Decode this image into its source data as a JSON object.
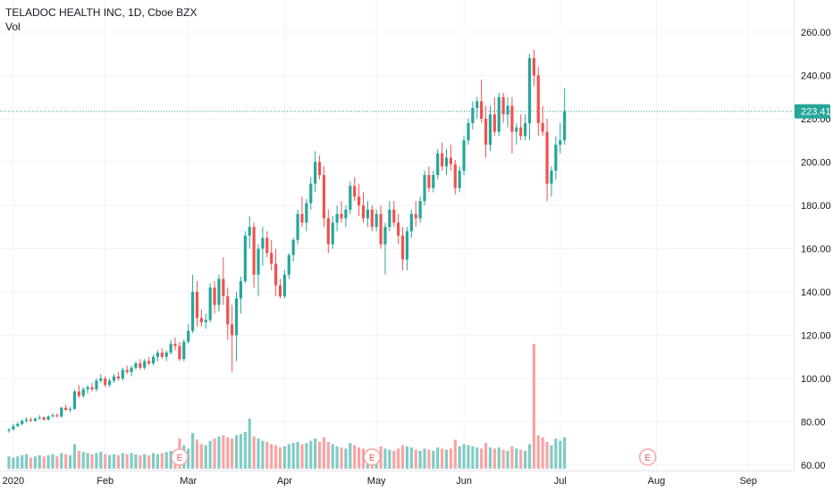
{
  "legend": {
    "title": "TELADOC HEALTH INC, 1D, Cboe BZX",
    "volume_label": "Vol"
  },
  "colors": {
    "up": "#26a69a",
    "down": "#ef5350",
    "vol_up": "#80cbc4",
    "vol_down": "#f7a5a3",
    "grid": "#f0f3fa",
    "last_line": "#26a69a"
  },
  "chart_data": {
    "type": "candlestick",
    "title": "",
    "y_ticks": [
      "260.00",
      "240.00",
      "220.00",
      "200.00",
      "180.00",
      "160.00",
      "140.00",
      "120.00",
      "100.00",
      "80.00",
      "60.00"
    ],
    "ylim": [
      57,
      267
    ],
    "x_ticks": [
      {
        "label": "2020",
        "day": 1
      },
      {
        "label": "Feb",
        "day": 22
      },
      {
        "label": "Mar",
        "day": 41
      },
      {
        "label": "Apr",
        "day": 63
      },
      {
        "label": "May",
        "day": 84
      },
      {
        "label": "Jun",
        "day": 104
      },
      {
        "label": "Jul",
        "day": 126
      },
      {
        "label": "Aug",
        "day": 148
      },
      {
        "label": "Sep",
        "day": 169
      }
    ],
    "last_price": "223.41",
    "earnings_markers": [
      {
        "label": "E",
        "day": 39
      },
      {
        "label": "E",
        "day": 83
      },
      {
        "label": "E",
        "day": 146
      }
    ],
    "ohlcv": [
      [
        76,
        77,
        75,
        76.5,
        11
      ],
      [
        76.5,
        79,
        76,
        78,
        10
      ],
      [
        78,
        80,
        77.5,
        79,
        11
      ],
      [
        79,
        81,
        78.5,
        80.5,
        12
      ],
      [
        80.5,
        82,
        79.5,
        81,
        13
      ],
      [
        81,
        82,
        80,
        80.5,
        10
      ],
      [
        80.5,
        82,
        80,
        81.5,
        11
      ],
      [
        81.5,
        83,
        81,
        82,
        12
      ],
      [
        82,
        82.5,
        80.5,
        81,
        11
      ],
      [
        81,
        83,
        80.5,
        82.5,
        12
      ],
      [
        82.5,
        84,
        82,
        83,
        13
      ],
      [
        83,
        84,
        82,
        82.5,
        11
      ],
      [
        82.5,
        87,
        82,
        86.5,
        14
      ],
      [
        86.5,
        88,
        85,
        85.5,
        13
      ],
      [
        85.5,
        87,
        84.5,
        86,
        12
      ],
      [
        86,
        95,
        85.5,
        94,
        22
      ],
      [
        94,
        97,
        91,
        92,
        16
      ],
      [
        92,
        96,
        91,
        95,
        15
      ],
      [
        95,
        97,
        93,
        96,
        14
      ],
      [
        96,
        98,
        94,
        95,
        13
      ],
      [
        95,
        100,
        94,
        99,
        14
      ],
      [
        99,
        102,
        98,
        100,
        15
      ],
      [
        100,
        101,
        96,
        97,
        13
      ],
      [
        97,
        100,
        96,
        99,
        12
      ],
      [
        99,
        102,
        98,
        101,
        13
      ],
      [
        101,
        103,
        99,
        100,
        12
      ],
      [
        100,
        105,
        99,
        104,
        14
      ],
      [
        104,
        106,
        102,
        103,
        13
      ],
      [
        103,
        106,
        101,
        105,
        14
      ],
      [
        105,
        108,
        104,
        107,
        13
      ],
      [
        107,
        109,
        104,
        105,
        12
      ],
      [
        105,
        109,
        104,
        108,
        13
      ],
      [
        108,
        110,
        106,
        107,
        12
      ],
      [
        107,
        111,
        106,
        110,
        14
      ],
      [
        110,
        113,
        108,
        112,
        13
      ],
      [
        112,
        114,
        109,
        110,
        14
      ],
      [
        110,
        113,
        108,
        112,
        15
      ],
      [
        112,
        118,
        111,
        116,
        16
      ],
      [
        116,
        119,
        113,
        115,
        15
      ],
      [
        115,
        117,
        108,
        109,
        27
      ],
      [
        109,
        118,
        108,
        117,
        21
      ],
      [
        117,
        125,
        116,
        122,
        18
      ],
      [
        122,
        148,
        121,
        140,
        32
      ],
      [
        140,
        145,
        124,
        128,
        26
      ],
      [
        128,
        132,
        124,
        126,
        22
      ],
      [
        126,
        130,
        123,
        127,
        21
      ],
      [
        127,
        144,
        126,
        142,
        25
      ],
      [
        142,
        145,
        130,
        134,
        27
      ],
      [
        134,
        148,
        131,
        146,
        29
      ],
      [
        146,
        156,
        134,
        138,
        30
      ],
      [
        138,
        142,
        118,
        125,
        28
      ],
      [
        125,
        134,
        103,
        120,
        27
      ],
      [
        120,
        140,
        108,
        137,
        30
      ],
      [
        137,
        147,
        130,
        145,
        31
      ],
      [
        145,
        168,
        144,
        166,
        33
      ],
      [
        166,
        175,
        160,
        170,
        45
      ],
      [
        170,
        172,
        142,
        148,
        29
      ],
      [
        148,
        162,
        138,
        160,
        27
      ],
      [
        160,
        170,
        152,
        165,
        25
      ],
      [
        165,
        168,
        156,
        158,
        24
      ],
      [
        158,
        164,
        150,
        153,
        22
      ],
      [
        153,
        160,
        138,
        143,
        21
      ],
      [
        143,
        146,
        137,
        138,
        19
      ],
      [
        138,
        150,
        137,
        148,
        20
      ],
      [
        148,
        158,
        146,
        157,
        22
      ],
      [
        157,
        165,
        154,
        164,
        23
      ],
      [
        164,
        178,
        162,
        176,
        24
      ],
      [
        176,
        184,
        170,
        172,
        22
      ],
      [
        172,
        183,
        168,
        181,
        23
      ],
      [
        181,
        193,
        178,
        190,
        25
      ],
      [
        190,
        205,
        186,
        200,
        27
      ],
      [
        200,
        203,
        192,
        194,
        24
      ],
      [
        194,
        198,
        170,
        174,
        28
      ],
      [
        174,
        178,
        158,
        162,
        24
      ],
      [
        162,
        175,
        160,
        172,
        22
      ],
      [
        172,
        180,
        168,
        176,
        20
      ],
      [
        176,
        182,
        172,
        174,
        19
      ],
      [
        174,
        180,
        170,
        178,
        18
      ],
      [
        178,
        191,
        176,
        189,
        23
      ],
      [
        189,
        193,
        182,
        184,
        21
      ],
      [
        184,
        190,
        175,
        180,
        19
      ],
      [
        180,
        186,
        172,
        174,
        18
      ],
      [
        174,
        182,
        170,
        178,
        17
      ],
      [
        178,
        180,
        168,
        170,
        18
      ],
      [
        170,
        178,
        168,
        176,
        16
      ],
      [
        176,
        180,
        160,
        162,
        20
      ],
      [
        162,
        172,
        148,
        170,
        18
      ],
      [
        170,
        182,
        168,
        178,
        17
      ],
      [
        178,
        182,
        170,
        172,
        16
      ],
      [
        172,
        176,
        162,
        166,
        18
      ],
      [
        166,
        170,
        150,
        155,
        21
      ],
      [
        155,
        170,
        150,
        168,
        20
      ],
      [
        168,
        178,
        165,
        176,
        19
      ],
      [
        176,
        182,
        170,
        174,
        17
      ],
      [
        174,
        184,
        172,
        182,
        16
      ],
      [
        182,
        196,
        180,
        194,
        18
      ],
      [
        194,
        198,
        186,
        188,
        17
      ],
      [
        188,
        196,
        186,
        194,
        16
      ],
      [
        194,
        206,
        192,
        204,
        19
      ],
      [
        204,
        209,
        196,
        198,
        18
      ],
      [
        198,
        206,
        194,
        202,
        17
      ],
      [
        202,
        208,
        196,
        199,
        18
      ],
      [
        199,
        201,
        185,
        188,
        26
      ],
      [
        188,
        198,
        186,
        196,
        20
      ],
      [
        196,
        212,
        194,
        210,
        22
      ],
      [
        210,
        220,
        208,
        218,
        21
      ],
      [
        218,
        228,
        215,
        225,
        20
      ],
      [
        225,
        230,
        220,
        228,
        19
      ],
      [
        228,
        238,
        218,
        220,
        18
      ],
      [
        220,
        226,
        202,
        208,
        23
      ],
      [
        208,
        226,
        205,
        222,
        19
      ],
      [
        222,
        230,
        212,
        214,
        18
      ],
      [
        214,
        232,
        212,
        230,
        19
      ],
      [
        230,
        232,
        218,
        222,
        17
      ],
      [
        222,
        230,
        216,
        226,
        16
      ],
      [
        226,
        230,
        204,
        214,
        20
      ],
      [
        214,
        218,
        208,
        216,
        18
      ],
      [
        216,
        222,
        210,
        212,
        17
      ],
      [
        212,
        222,
        210,
        218,
        16
      ],
      [
        218,
        250,
        210,
        248,
        22
      ],
      [
        248,
        252,
        235,
        240,
        112
      ],
      [
        240,
        244,
        212,
        218,
        30
      ],
      [
        218,
        226,
        212,
        214,
        28
      ],
      [
        214,
        220,
        182,
        190,
        24
      ],
      [
        190,
        198,
        184,
        196,
        21
      ],
      [
        196,
        212,
        192,
        208,
        27
      ],
      [
        208,
        218,
        204,
        210,
        25
      ],
      [
        210,
        234,
        208,
        223.41,
        28
      ]
    ]
  }
}
